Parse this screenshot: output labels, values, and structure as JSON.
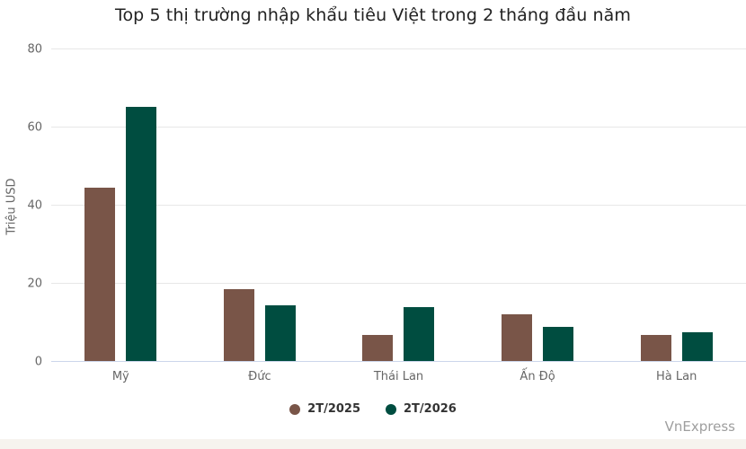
{
  "chart_data": {
    "type": "bar",
    "title": "Top 5 thị trường nhập khẩu tiêu Việt trong 2 tháng đầu năm",
    "xlabel": "",
    "ylabel": "Triệu USD",
    "categories": [
      "Mỹ",
      "Đức",
      "Thái Lan",
      "Ấn Độ",
      "Hà Lan"
    ],
    "series": [
      {
        "name": "2T/2025",
        "color": "#795548",
        "values": [
          44.5,
          18.7,
          6.9,
          12.2,
          6.9
        ]
      },
      {
        "name": "2T/2026",
        "color": "#004d40",
        "values": [
          65.4,
          14.5,
          14.0,
          8.9,
          7.5
        ]
      }
    ],
    "ylim": [
      0,
      80
    ],
    "yticks": [
      0,
      20,
      40,
      60,
      80
    ],
    "grid": true,
    "legend_position": "bottom-center"
  },
  "colors": {
    "gridline": "#e7e7e7",
    "axis_line": "#ccd6eb",
    "title": "#222222",
    "tick_label": "#666666",
    "legend_label": "#333333",
    "credits": "#9e9e9e",
    "bottom_strip": "#f6f3ee",
    "background": "#ffffff"
  },
  "credits": {
    "label": "VnExpress"
  }
}
